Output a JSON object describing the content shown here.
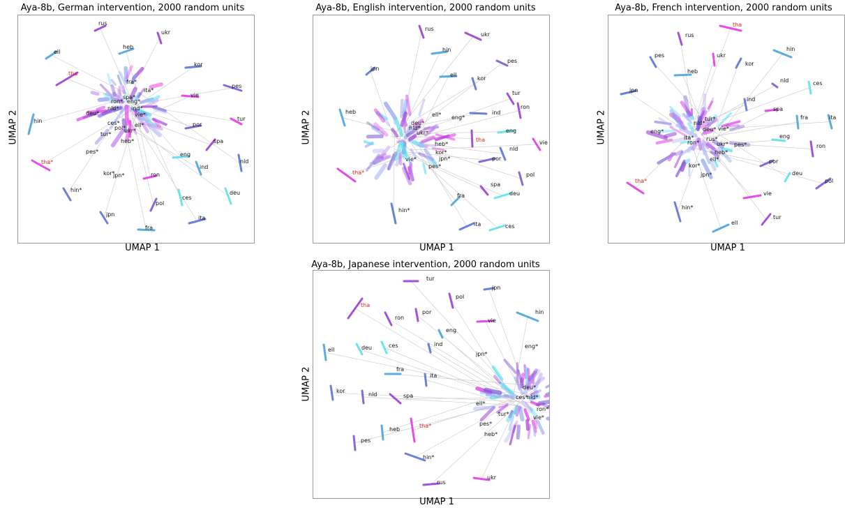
{
  "chart_data": [
    {
      "type": "scatter",
      "title": "Aya-8b, German intervention, 2000 random units",
      "xlabel": "UMAP 1",
      "ylabel": "UMAP 2",
      "highlight_color": "#d62728",
      "target_labels": [
        "rus",
        "ukr",
        "ell",
        "heb",
        "tha",
        "kor",
        "pes",
        "vie",
        "tur",
        "hin",
        "por",
        "spa",
        "nld",
        "ind",
        "eng",
        "ces",
        "deu",
        "tha*",
        "hin*",
        "ron",
        "pol",
        "jpn",
        "ita",
        "fra"
      ],
      "intervened_labels": [
        "fra*",
        "ita*",
        "spa*",
        "ron*",
        "eng*",
        "nld*",
        "ind*",
        "vie*",
        "deu*",
        "ces*",
        "ell*",
        "pol*",
        "ukr*",
        "tur*",
        "heb*",
        "pes*",
        "kor*",
        "jpn*"
      ],
      "highlighted": [
        "tha",
        "tha*"
      ]
    },
    {
      "type": "scatter",
      "title": "Aya-8b, English intervention, 2000 random units",
      "xlabel": "UMAP 1",
      "ylabel": "UMAP 2",
      "highlight_color": "#d62728",
      "target_labels": [
        "rus",
        "ukr",
        "hin",
        "jpn",
        "pes",
        "ell",
        "kor",
        "tur",
        "heb",
        "ron",
        "ind",
        "eng",
        "tha",
        "vie",
        "nld",
        "por",
        "pol",
        "spa",
        "deu",
        "fra",
        "ita",
        "ces",
        "hin*",
        "tha*"
      ],
      "intervened_labels": [
        "ell*",
        "eng*",
        "deu*",
        "nld*",
        "ukr*",
        "heb*",
        "kor*",
        "jpn*",
        "vie*",
        "pes*"
      ],
      "highlighted": [
        "tha",
        "tha*"
      ]
    },
    {
      "type": "scatter",
      "title": "Aya-8b, French intervention, 2000 random units",
      "xlabel": "UMAP 1",
      "ylabel": "UMAP 2",
      "highlight_color": "#d62728",
      "target_labels": [
        "tha",
        "rus",
        "ukr",
        "hin",
        "pes",
        "kor",
        "heb",
        "nld",
        "jpn",
        "ces",
        "ind",
        "spa",
        "fra",
        "ita",
        "eng",
        "ron",
        "por",
        "deu",
        "pol",
        "vie",
        "tur",
        "ell",
        "tha*",
        "hin*"
      ],
      "intervened_labels": [
        "tur*",
        "nld*",
        "vie*",
        "deu*",
        "ita*",
        "ron*",
        "rus*",
        "ukr*",
        "heb*",
        "pes*",
        "ell*",
        "kor*",
        "jpn*",
        "eng*"
      ],
      "highlighted": [
        "tha",
        "tha*"
      ]
    },
    {
      "type": "scatter",
      "title": "Aya-8b, Japanese intervention, 2000 random units",
      "xlabel": "UMAP 1",
      "ylabel": "UMAP 2",
      "highlight_color": "#d62728",
      "target_labels": [
        "tur",
        "jpn",
        "tha",
        "pol",
        "hin",
        "ron",
        "por",
        "vie",
        "eng",
        "ell",
        "deu",
        "ces",
        "ind",
        "kor",
        "fra",
        "ita",
        "nld",
        "spa",
        "heb",
        "pes",
        "rus",
        "ukr",
        "tha*",
        "hin*"
      ],
      "intervened_labels": [
        "eng*",
        "jpn*",
        "deu*",
        "ces*",
        "nld*",
        "ell*",
        "ron*",
        "vie*",
        "pes*",
        "tur*",
        "heb*"
      ],
      "highlighted": [
        "tha",
        "tha*"
      ]
    }
  ]
}
